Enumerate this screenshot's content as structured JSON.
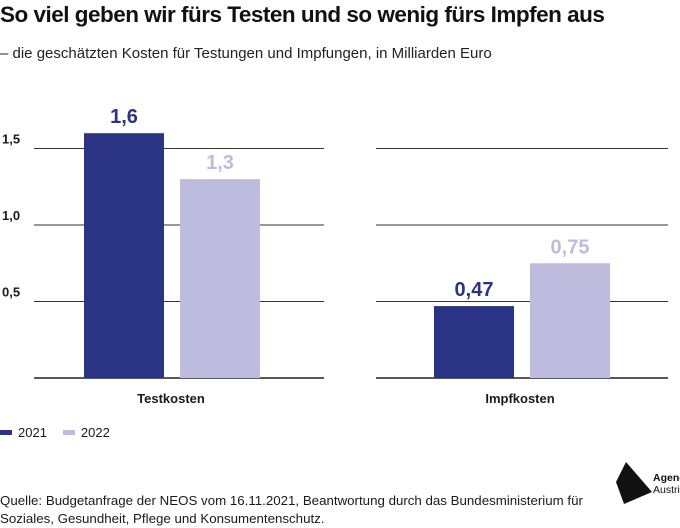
{
  "header": {
    "title": "So viel geben wir fürs Testen und so wenig fürs Impfen aus",
    "subtitle": "– die geschätzten Kosten für Testungen und Impfungen, in Milliarden Euro"
  },
  "chart_data": {
    "type": "bar",
    "categories": [
      "Testkosten",
      "Impfkosten"
    ],
    "series": [
      {
        "name": "2021",
        "values": [
          1.6,
          0.47
        ],
        "labels": [
          "1,6",
          "0,47"
        ],
        "color": "#2a3384"
      },
      {
        "name": "2022",
        "values": [
          1.3,
          0.75
        ],
        "labels": [
          "1,3",
          "0,75"
        ],
        "color": "#bdbcde"
      }
    ],
    "yticks": [
      {
        "value": 0.5,
        "label": "0,5"
      },
      {
        "value": 1.0,
        "label": "1,0"
      },
      {
        "value": 1.5,
        "label": "1,5"
      }
    ],
    "ylim": [
      0,
      1.75
    ],
    "grid": true,
    "legend_position": "bottom-left"
  },
  "footer": {
    "source": "Quelle: Budgetanfrage der NEOS vom 16.11.2021, Beantwortung durch das Bundesministerium für Soziales, Gesundheit, Pflege und Konsumentenschutz.",
    "logo_line1": "Agenda",
    "logo_line2": "Austria"
  },
  "colors": {
    "dark": "#2a3384",
    "light": "#bdbcde"
  }
}
